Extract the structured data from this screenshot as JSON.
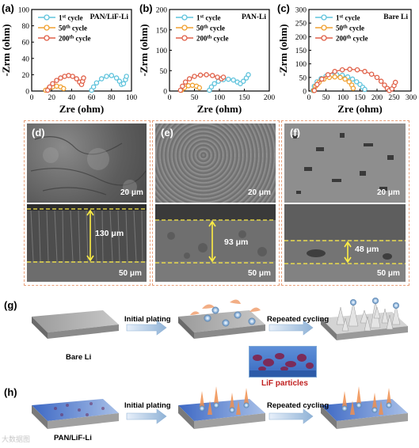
{
  "panels": {
    "a": "(a)",
    "b": "(b)",
    "c": "(c)",
    "d": "(d)",
    "e": "(e)",
    "f": "(f)",
    "g": "(g)",
    "h": "(h)"
  },
  "chart_data": [
    {
      "type": "scatter",
      "title": "PAN/LiF-Li",
      "xlabel": "Zre (ohm)",
      "ylabel": "-Zrm (ohm)",
      "xlim": [
        0,
        100
      ],
      "ylim": [
        0,
        100
      ],
      "xticks": [
        "0",
        "20",
        "40",
        "60",
        "80",
        "100"
      ],
      "yticks": [
        "0",
        "20",
        "40",
        "60",
        "80",
        "100"
      ],
      "legend_position": "top-right",
      "series": [
        {
          "name": "1st cycle",
          "color": "#5fc3dc",
          "points": [
            [
              60,
              1
            ],
            [
              62,
              5
            ],
            [
              65,
              10
            ],
            [
              70,
              15
            ],
            [
              75,
              18
            ],
            [
              80,
              19
            ],
            [
              85,
              16
            ],
            [
              88,
              12
            ],
            [
              90,
              8
            ],
            [
              92,
              9
            ],
            [
              94,
              14
            ],
            [
              95,
              18
            ]
          ]
        },
        {
          "name": "50th cycle",
          "color": "#f0a030",
          "points": [
            [
              14,
              1
            ],
            [
              17,
              3
            ],
            [
              21,
              5
            ],
            [
              25,
              6
            ],
            [
              29,
              5
            ],
            [
              32,
              3
            ]
          ]
        },
        {
          "name": "200th cycle",
          "color": "#e06048",
          "points": [
            [
              16,
              1
            ],
            [
              18,
              5
            ],
            [
              21,
              9
            ],
            [
              25,
              13
            ],
            [
              29,
              16
            ],
            [
              33,
              18
            ],
            [
              37,
              19
            ],
            [
              41,
              18
            ],
            [
              45,
              15
            ],
            [
              48,
              11
            ],
            [
              50,
              8
            ],
            [
              51,
              12
            ],
            [
              52,
              16
            ]
          ]
        }
      ]
    },
    {
      "type": "scatter",
      "title": "PAN-Li",
      "xlabel": "Zre (ohm)",
      "ylabel": "-Zrm (ohm)",
      "xlim": [
        0,
        200
      ],
      "ylim": [
        0,
        200
      ],
      "xticks": [
        "0",
        "50",
        "100",
        "150",
        "200"
      ],
      "yticks": [
        "0",
        "50",
        "100",
        "150",
        "200"
      ],
      "legend_position": "top-right",
      "series": [
        {
          "name": "1st cycle",
          "color": "#5fc3dc",
          "points": [
            [
              80,
              2
            ],
            [
              84,
              10
            ],
            [
              90,
              18
            ],
            [
              98,
              24
            ],
            [
              108,
              28
            ],
            [
              118,
              29
            ],
            [
              128,
              27
            ],
            [
              136,
              22
            ],
            [
              142,
              18
            ],
            [
              148,
              24
            ],
            [
              154,
              32
            ],
            [
              158,
              40
            ]
          ]
        },
        {
          "name": "50th cycle",
          "color": "#f0a030",
          "points": [
            [
              24,
              2
            ],
            [
              30,
              8
            ],
            [
              38,
              13
            ],
            [
              46,
              14
            ],
            [
              54,
              12
            ],
            [
              60,
              8
            ]
          ]
        },
        {
          "name": "200th cycle",
          "color": "#e06048",
          "points": [
            [
              22,
              2
            ],
            [
              26,
              12
            ],
            [
              32,
              22
            ],
            [
              40,
              30
            ],
            [
              50,
              36
            ],
            [
              62,
              39
            ],
            [
              74,
              40
            ],
            [
              86,
              38
            ],
            [
              96,
              34
            ],
            [
              104,
              30
            ],
            [
              108,
              34
            ]
          ]
        }
      ]
    },
    {
      "type": "scatter",
      "title": "Bare Li",
      "xlabel": "Zre (ohm)",
      "ylabel": "-Zrm (ohm)",
      "xlim": [
        0,
        300
      ],
      "ylim": [
        0,
        300
      ],
      "xticks": [
        "0",
        "50",
        "100",
        "150",
        "200",
        "250",
        "300"
      ],
      "yticks": [
        "0",
        "50",
        "100",
        "150",
        "200",
        "250",
        "300"
      ],
      "legend_position": "top-right",
      "series": [
        {
          "name": "1st cycle",
          "color": "#5fc3dc",
          "points": [
            [
              12,
              2
            ],
            [
              16,
              18
            ],
            [
              24,
              34
            ],
            [
              36,
              46
            ],
            [
              50,
              54
            ],
            [
              66,
              58
            ],
            [
              82,
              60
            ],
            [
              98,
              58
            ],
            [
              114,
              52
            ],
            [
              128,
              44
            ],
            [
              140,
              34
            ],
            [
              150,
              24
            ],
            [
              158,
              14
            ],
            [
              164,
              6
            ]
          ]
        },
        {
          "name": "50th cycle",
          "color": "#f0a030",
          "points": [
            [
              14,
              2
            ],
            [
              20,
              18
            ],
            [
              30,
              32
            ],
            [
              44,
              44
            ],
            [
              60,
              50
            ],
            [
              76,
              52
            ],
            [
              92,
              50
            ],
            [
              106,
              44
            ],
            [
              118,
              34
            ],
            [
              126,
              22
            ],
            [
              130,
              10
            ]
          ]
        },
        {
          "name": "200th cycle",
          "color": "#e06048",
          "points": [
            [
              16,
              2
            ],
            [
              24,
              24
            ],
            [
              38,
              44
            ],
            [
              56,
              60
            ],
            [
              76,
              72
            ],
            [
              98,
              78
            ],
            [
              120,
              80
            ],
            [
              142,
              78
            ],
            [
              164,
              72
            ],
            [
              184,
              62
            ],
            [
              200,
              50
            ],
            [
              212,
              36
            ],
            [
              222,
              22
            ],
            [
              230,
              10
            ],
            [
              236,
              2
            ],
            [
              244,
              8
            ],
            [
              250,
              20
            ],
            [
              254,
              32
            ]
          ]
        }
      ]
    }
  ],
  "sem": {
    "d": {
      "scale_top": "20 μm",
      "thickness": "130 μm",
      "scale_bottom": "50 μm"
    },
    "e": {
      "scale_top": "20 μm",
      "thickness": "93 μm",
      "scale_bottom": "50 μm"
    },
    "f": {
      "scale_top": "20 μm",
      "thickness": "48 μm",
      "scale_bottom": "50 μm"
    }
  },
  "schematic": {
    "g": {
      "bottom_label": "Bare Li",
      "step1": "Initial plating",
      "step2": "Repeated cycling"
    },
    "h": {
      "bottom_label": "PAN/LiF-Li",
      "step1": "Initial plating",
      "step2": "Repeated cycling",
      "inset_label": "LiF particles"
    }
  },
  "watermark": "大数据图"
}
